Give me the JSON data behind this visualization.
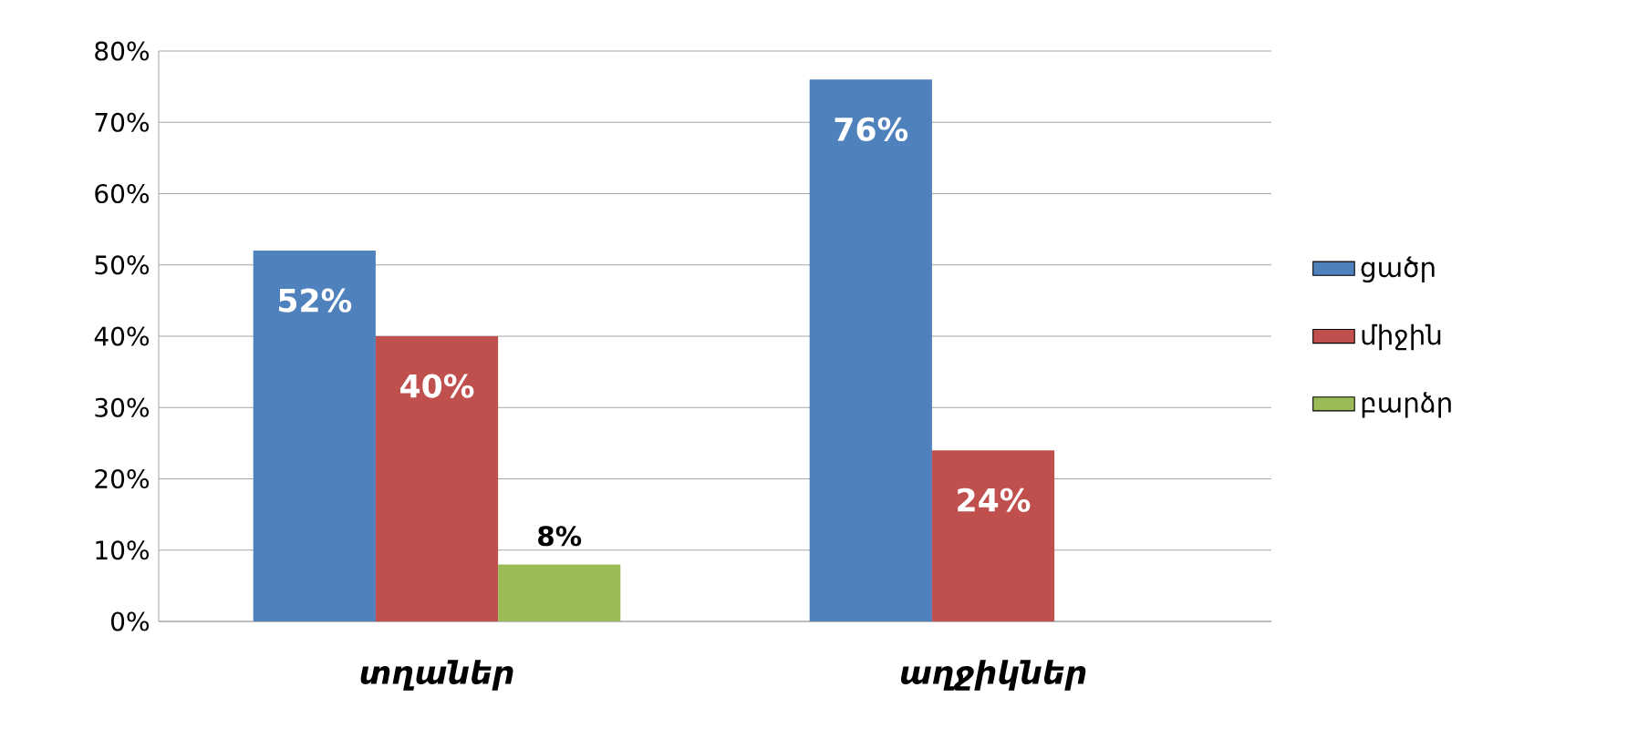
{
  "chart_data": {
    "type": "bar",
    "categories": [
      "տղաներ",
      "աղջիկներ"
    ],
    "series": [
      {
        "name": "ցածր",
        "color": "#4f81bd",
        "values": [
          52,
          76
        ],
        "value_labels": [
          "52%",
          "76%"
        ]
      },
      {
        "name": "միջին",
        "color": "#c0504d",
        "values": [
          40,
          24
        ],
        "value_labels": [
          "40%",
          "24%"
        ]
      },
      {
        "name": "բարձր",
        "color": "#9bbb59",
        "values": [
          8,
          null
        ],
        "value_labels": [
          "8%",
          null
        ]
      }
    ],
    "ylim": [
      0,
      80
    ],
    "yticks": [
      {
        "value": 0,
        "label": "0%"
      },
      {
        "value": 10,
        "label": "10%"
      },
      {
        "value": 20,
        "label": "20%"
      },
      {
        "value": 30,
        "label": "30%"
      },
      {
        "value": 40,
        "label": "40%"
      },
      {
        "value": 50,
        "label": "50%"
      },
      {
        "value": 60,
        "label": "60%"
      },
      {
        "value": 70,
        "label": "70%"
      },
      {
        "value": 80,
        "label": "80%"
      }
    ],
    "grid": "y",
    "legend": "right"
  }
}
